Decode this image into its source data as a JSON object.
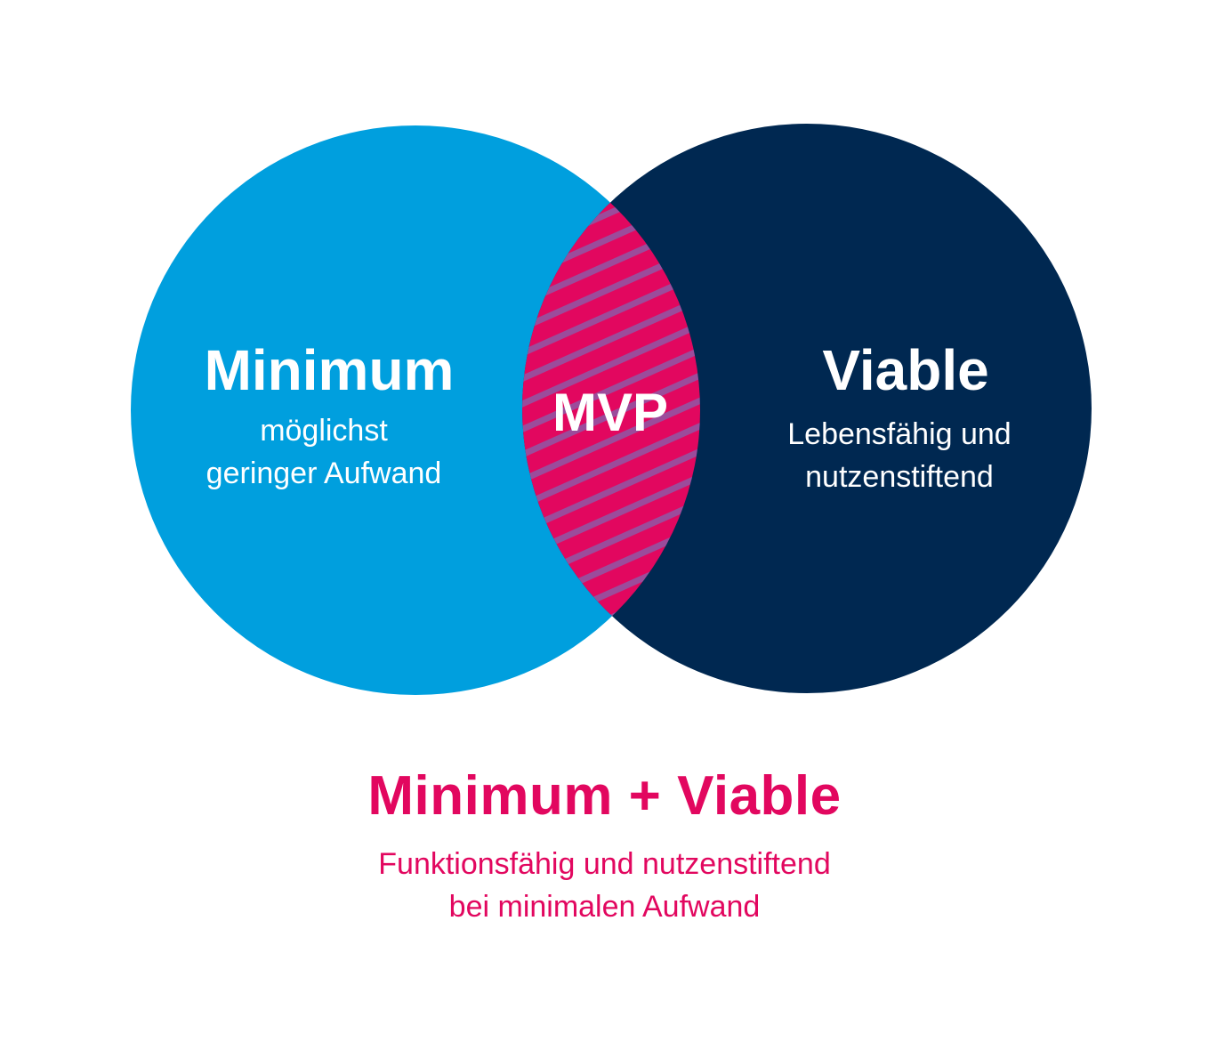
{
  "colors": {
    "minimum_circle": "#009fde",
    "viable_circle": "#002851",
    "overlap": "#e2075f",
    "overlap_stripes": "#9b4c9b",
    "text_light": "#ffffff",
    "accent_text": "#e2075f"
  },
  "minimum": {
    "title": "Minimum",
    "line1": "möglichst",
    "line2": "geringer Aufwand"
  },
  "viable": {
    "title": "Viable",
    "line1": "Lebensfähig und",
    "line2": "nutzenstiftend"
  },
  "overlap": {
    "label": "MVP"
  },
  "summary": {
    "title": "Minimum + Viable",
    "line1": "Funktionsfähig und nutzenstiftend",
    "line2": "bei minimalen Aufwand"
  }
}
